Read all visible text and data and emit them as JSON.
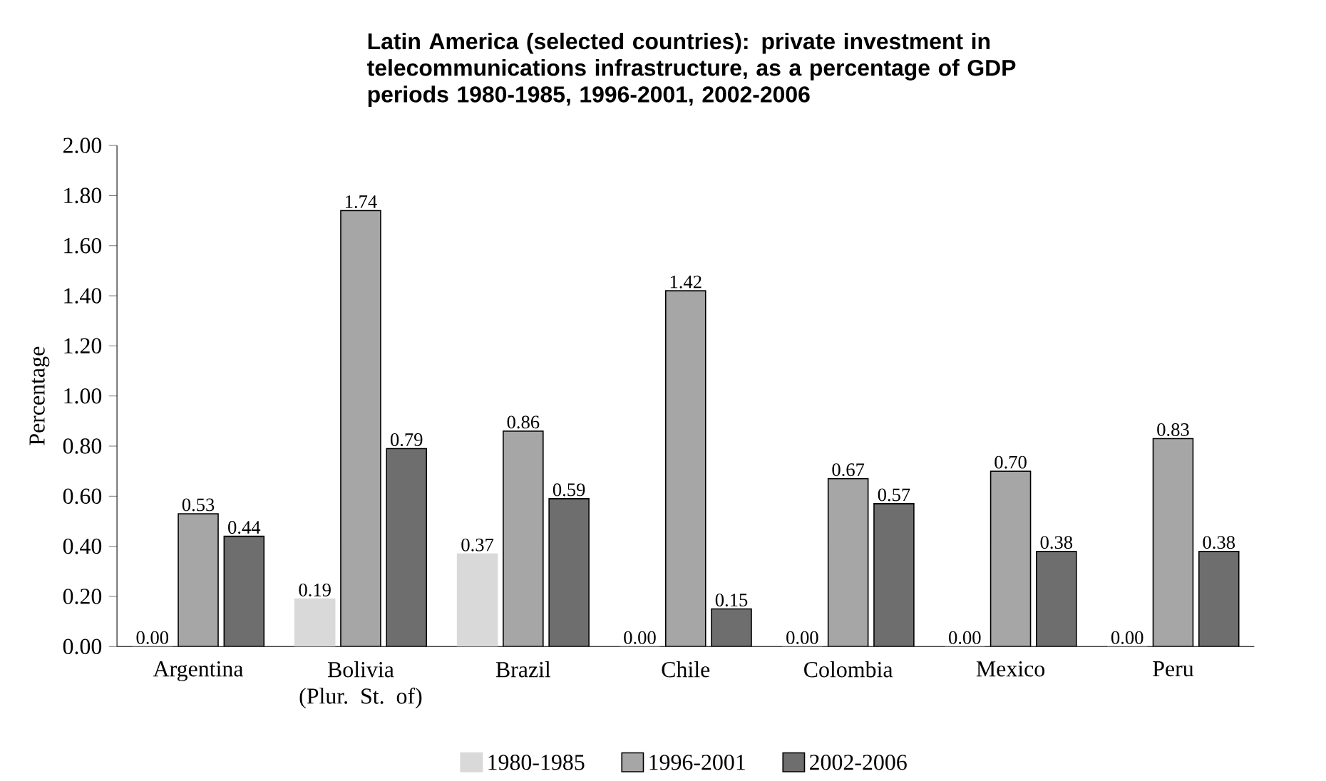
{
  "chart_data": {
    "type": "bar",
    "title": "Latin America (selected countries): private investment in telecommunications infrastructure, as a percentage of GDP",
    "subtitle": "periods 1980-1985, 1996-2001, 2002-2006",
    "ylabel": "Percentage",
    "categories": [
      "Argentina",
      "Bolivia (Plur. St. of)",
      "Brazil",
      "Chile",
      "Colombia",
      "Mexico",
      "Peru"
    ],
    "series": [
      {
        "name": "1980-1985",
        "color": "#d9d9d9",
        "values": [
          0,
          0.19,
          0.37,
          0,
          0,
          0,
          0
        ],
        "value_labels": [
          "0.00",
          "0.19",
          "0.37",
          "0.00",
          "0.00",
          "0.00",
          "0.00"
        ]
      },
      {
        "name": "1996-2001",
        "color": "#a6a6a6",
        "values": [
          0.53,
          1.74,
          0.86,
          1.42,
          0.67,
          0.7,
          0.83
        ],
        "value_labels": [
          "0.53",
          "1.74",
          "0.86",
          "1.42",
          "0.67",
          "0.70",
          "0.83"
        ]
      },
      {
        "name": "2002-2006",
        "color": "#6e6e6e",
        "values": [
          0.44,
          0.79,
          0.59,
          0.15,
          0.57,
          0.38,
          0.38
        ],
        "value_labels": [
          "0.44",
          "0.79",
          "0.59",
          "0.15",
          "0.57",
          "0.38",
          "0.38"
        ]
      }
    ],
    "ylim": [
      0,
      2
    ],
    "yticks": [
      {
        "value": 0,
        "label": "0.00"
      },
      {
        "value": 0.2,
        "label": "0.20"
      },
      {
        "value": 0.4,
        "label": "0.40"
      },
      {
        "value": 0.6,
        "label": "0.60"
      },
      {
        "value": 0.8,
        "label": "0.80"
      },
      {
        "value": 1,
        "label": "1.00"
      },
      {
        "value": 1.2,
        "label": "1.20"
      },
      {
        "value": 1.4,
        "label": "1.40"
      },
      {
        "value": 1.6,
        "label": "1.60"
      },
      {
        "value": 1.8,
        "label": "1.80"
      },
      {
        "value": 2,
        "label": "2.00"
      }
    ],
    "legend": "bottom",
    "grid": false
  }
}
